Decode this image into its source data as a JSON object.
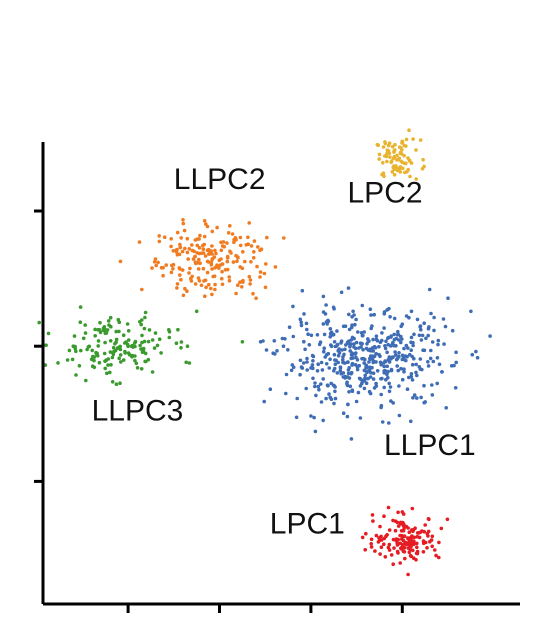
{
  "chart_data": {
    "type": "scatter",
    "title": "",
    "xlabel": "",
    "ylabel": "",
    "x_tick_labels": [
      "",
      "",
      "",
      ""
    ],
    "y_tick_labels": [
      "",
      "",
      ""
    ],
    "grid": false,
    "legend": "none",
    "xlim": [
      0,
      100
    ],
    "ylim": [
      0,
      100
    ],
    "x_ticks": [
      16,
      36,
      56,
      76
    ],
    "y_ticks": [
      24,
      55,
      86
    ],
    "point_radius": 1.8,
    "clusters": [
      {
        "label": "LPC2",
        "color": "#e8b430",
        "label_at": {
          "x": 64,
          "y": 88
        },
        "center": {
          "x": 75,
          "y": 98
        },
        "spread": {
          "x": 4.5,
          "y": 4
        },
        "count": 80,
        "points": [
          {
            "x": 71,
            "y": 99
          },
          {
            "x": 73,
            "y": 101
          },
          {
            "x": 76,
            "y": 102
          },
          {
            "x": 79,
            "y": 100
          },
          {
            "x": 74,
            "y": 96
          },
          {
            "x": 77,
            "y": 95
          },
          {
            "x": 72,
            "y": 94
          },
          {
            "x": 78,
            "y": 97
          }
        ]
      },
      {
        "label": "LLPC2",
        "color": "#f07b20",
        "label_at": {
          "x": 26,
          "y": 91
        },
        "center": {
          "x": 34,
          "y": 75
        },
        "spread": {
          "x": 11,
          "y": 7.5
        },
        "count": 200,
        "points": [
          {
            "x": 24,
            "y": 80
          },
          {
            "x": 28,
            "y": 84
          },
          {
            "x": 33,
            "y": 83
          },
          {
            "x": 38,
            "y": 81
          },
          {
            "x": 43,
            "y": 78
          },
          {
            "x": 45,
            "y": 72
          },
          {
            "x": 40,
            "y": 69
          },
          {
            "x": 35,
            "y": 68
          },
          {
            "x": 30,
            "y": 71
          },
          {
            "x": 22,
            "y": 75
          },
          {
            "x": 19,
            "y": 68
          },
          {
            "x": 44,
            "y": 66
          }
        ]
      },
      {
        "label": "LLPC3",
        "color": "#3a9a2e",
        "label_at": {
          "x": 8,
          "y": 38
        },
        "center": {
          "x": 13,
          "y": 55
        },
        "spread": {
          "x": 11,
          "y": 6
        },
        "count": 160,
        "points": [
          {
            "x": 4,
            "y": 55
          },
          {
            "x": 8,
            "y": 52
          },
          {
            "x": 12,
            "y": 49
          },
          {
            "x": 16,
            "y": 55
          },
          {
            "x": 19,
            "y": 61
          },
          {
            "x": 22,
            "y": 58
          },
          {
            "x": 25,
            "y": 57
          },
          {
            "x": 29,
            "y": 55
          },
          {
            "x": 11,
            "y": 58
          },
          {
            "x": 31,
            "y": 63
          },
          {
            "x": 41,
            "y": 56
          }
        ]
      },
      {
        "label": "LLPC1",
        "color": "#3f6db5",
        "label_at": {
          "x": 72,
          "y": 30
        },
        "center": {
          "x": 68,
          "y": 52
        },
        "spread": {
          "x": 17,
          "y": 10
        },
        "count": 480,
        "points": [
          {
            "x": 53,
            "y": 43
          },
          {
            "x": 56,
            "y": 39
          },
          {
            "x": 60,
            "y": 50
          },
          {
            "x": 64,
            "y": 46
          },
          {
            "x": 69,
            "y": 52
          },
          {
            "x": 73,
            "y": 57
          },
          {
            "x": 78,
            "y": 63
          },
          {
            "x": 82,
            "y": 68
          },
          {
            "x": 86,
            "y": 66
          },
          {
            "x": 91,
            "y": 63
          },
          {
            "x": 45,
            "y": 56
          },
          {
            "x": 50,
            "y": 55
          },
          {
            "x": 74,
            "y": 42
          },
          {
            "x": 79,
            "y": 49
          }
        ]
      },
      {
        "label": "LPC1",
        "color": "#e51c23",
        "label_at": {
          "x": 47,
          "y": 12
        },
        "center": {
          "x": 77,
          "y": 11
        },
        "spread": {
          "x": 6.5,
          "y": 4.5
        },
        "count": 150,
        "points": [
          {
            "x": 68,
            "y": 12
          },
          {
            "x": 72,
            "y": 16
          },
          {
            "x": 76,
            "y": 17
          },
          {
            "x": 81,
            "y": 14
          },
          {
            "x": 84,
            "y": 10
          },
          {
            "x": 79,
            "y": 6
          },
          {
            "x": 74,
            "y": 5
          },
          {
            "x": 70,
            "y": 8
          }
        ]
      }
    ]
  }
}
